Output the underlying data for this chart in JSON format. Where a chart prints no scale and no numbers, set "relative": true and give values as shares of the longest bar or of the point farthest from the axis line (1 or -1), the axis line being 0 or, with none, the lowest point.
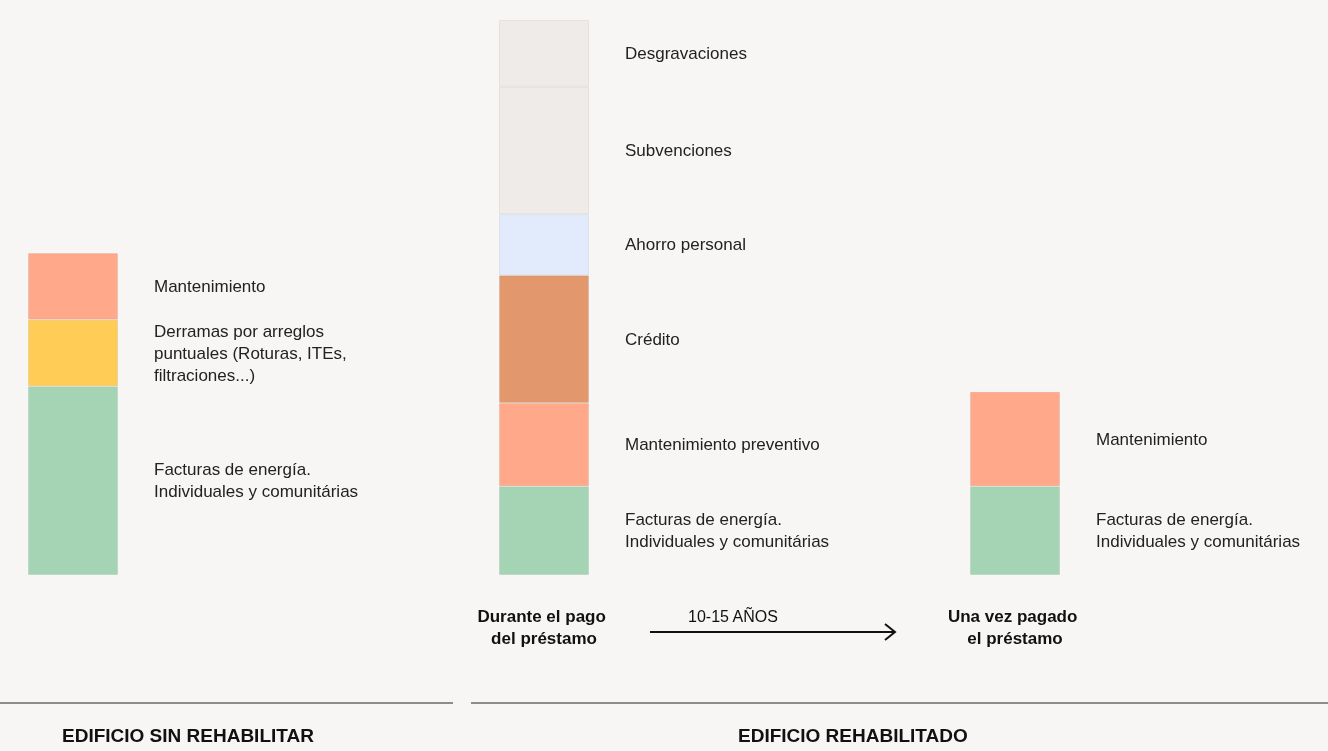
{
  "chart_data": {
    "type": "bar",
    "stacked": true,
    "relative": true,
    "categories": [
      null,
      "Durante el pago del préstamo",
      "Una vez pagado el préstamo"
    ],
    "series": [
      {
        "name": "Facturas de energía. Individuales y comunitárias",
        "color": "#a5d4b5",
        "values": [
          0.34,
          null,
          null
        ]
      },
      {
        "name": "Facturas de energía. Individuales y comunitárias",
        "color": "#a5d4b5",
        "values": [
          null,
          0.16,
          null
        ]
      },
      {
        "name": "Facturas de energía. Individuales y comunitárias",
        "color": "#a5d4b5",
        "values": [
          null,
          null,
          0.16
        ]
      },
      {
        "name": "Derramas por arreglos puntuales (Roturas, ITEs, filtraciones...)",
        "color": "#ffcc55",
        "values": [
          0.12,
          null,
          null
        ]
      },
      {
        "name": "Mantenimiento",
        "color": "#ffa98a",
        "values": [
          0.12,
          null,
          0.17
        ]
      },
      {
        "name": "Mantenimiento preventivo",
        "color": "#ffa98a",
        "values": [
          null,
          0.15,
          null
        ]
      },
      {
        "name": "Crédito",
        "color": "#e2976c",
        "values": [
          null,
          0.23,
          null
        ]
      },
      {
        "name": "Ahorro personal",
        "color": "#e1ebfb",
        "values": [
          null,
          0.11,
          null
        ]
      },
      {
        "name": "Subvenciones",
        "color": "#eeebe8",
        "values": [
          null,
          0.23,
          null
        ]
      },
      {
        "name": "Desgravaciones",
        "color": "#eeebe8",
        "values": [
          null,
          0.12,
          null
        ]
      }
    ],
    "annotations": [
      "10-15 AÑOS",
      "EDIFICIO SIN REHABILITAR",
      "EDIFICIO REHABILITADO"
    ],
    "legend": false,
    "grid": false
  }
}
